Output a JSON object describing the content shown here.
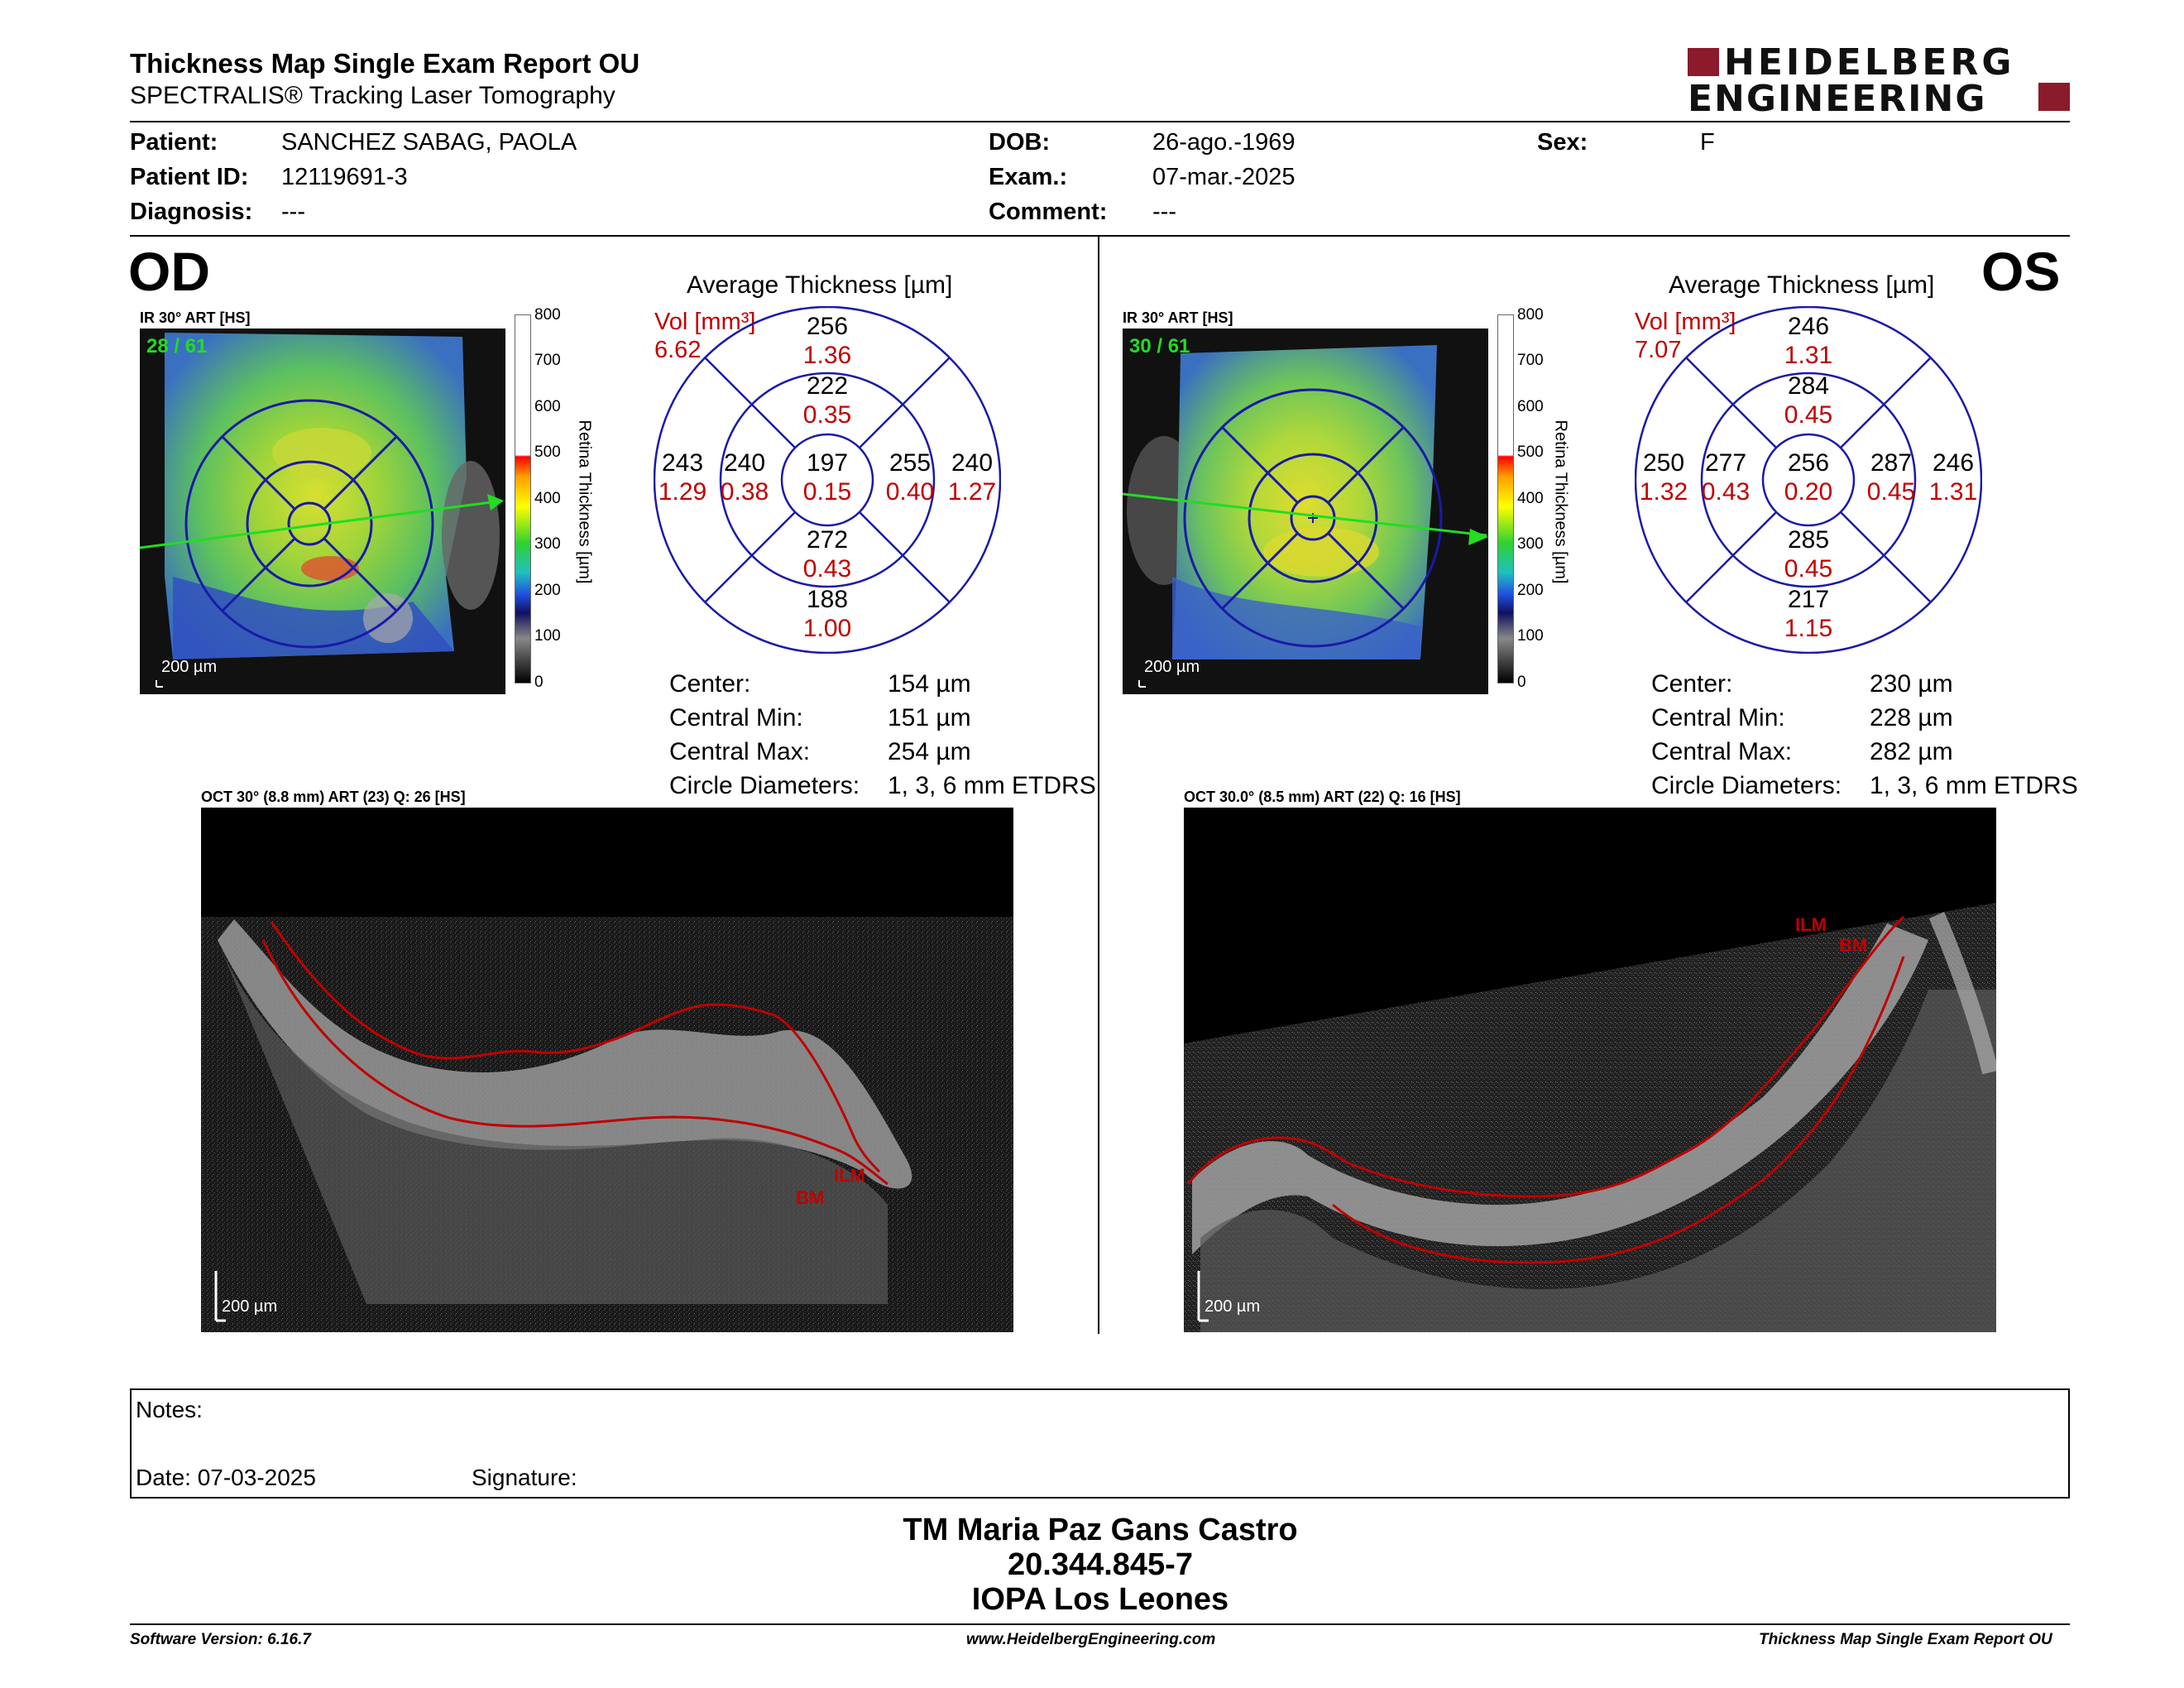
{
  "header": {
    "title": "Thickness Map Single Exam Report OU",
    "subtitle": "SPECTRALIS® Tracking Laser Tomography",
    "logo_line1": "HEIDELBERG",
    "logo_line2": "ENGINEERING"
  },
  "patient": {
    "patient_label": "Patient:",
    "patient_value": "SANCHEZ SABAG, PAOLA",
    "id_label": "Patient ID:",
    "id_value": "12119691-3",
    "diagnosis_label": "Diagnosis:",
    "diagnosis_value": "---",
    "dob_label": "DOB:",
    "dob_value": "26-ago.-1969",
    "exam_label": "Exam.:",
    "exam_value": "07-mar.-2025",
    "comment_label": "Comment:",
    "comment_value": "---",
    "sex_label": "Sex:",
    "sex_value": "F"
  },
  "colorbar": {
    "ticks": [
      "800",
      "700",
      "600",
      "500",
      "400",
      "300",
      "200",
      "100",
      "0"
    ],
    "label": "Retina Thickness [µm]"
  },
  "od": {
    "eye": "OD",
    "ir_caption": "IR 30° ART [HS]",
    "frame": "28 / 61",
    "scale": "200 µm",
    "avg_title": "Average Thickness [µm]",
    "vol_label": "Vol [mm³]",
    "vol_total": "6.62",
    "sectors": {
      "outer_top": {
        "t": "256",
        "v": "1.36"
      },
      "inner_top": {
        "t": "222",
        "v": "0.35"
      },
      "outer_left": {
        "t": "243",
        "v": "1.29"
      },
      "inner_left": {
        "t": "240",
        "v": "0.38"
      },
      "center": {
        "t": "197",
        "v": "0.15"
      },
      "inner_right": {
        "t": "255",
        "v": "0.40"
      },
      "outer_right": {
        "t": "240",
        "v": "1.27"
      },
      "inner_bottom": {
        "t": "272",
        "v": "0.43"
      },
      "outer_bottom": {
        "t": "188",
        "v": "1.00"
      }
    },
    "stats": {
      "center_label": "Center:",
      "center_value": "154 µm",
      "min_label": "Central Min:",
      "min_value": "151 µm",
      "max_label": "Central Max:",
      "max_value": "254 µm",
      "diam_label": "Circle Diameters:",
      "diam_value": "1, 3, 6 mm ETDRS"
    },
    "oct_caption": "OCT 30° (8.8 mm) ART (23) Q: 26 [HS]",
    "oct_scale": "200 µm",
    "ilm_label": "ILM",
    "bm_label": "BM"
  },
  "os": {
    "eye": "OS",
    "ir_caption": "IR 30° ART [HS]",
    "frame": "30 / 61",
    "scale": "200 µm",
    "avg_title": "Average Thickness [µm]",
    "vol_label": "Vol [mm³]",
    "vol_total": "7.07",
    "sectors": {
      "outer_top": {
        "t": "246",
        "v": "1.31"
      },
      "inner_top": {
        "t": "284",
        "v": "0.45"
      },
      "outer_left": {
        "t": "250",
        "v": "1.32"
      },
      "inner_left": {
        "t": "277",
        "v": "0.43"
      },
      "center": {
        "t": "256",
        "v": "0.20"
      },
      "inner_right": {
        "t": "287",
        "v": "0.45"
      },
      "outer_right": {
        "t": "246",
        "v": "1.31"
      },
      "inner_bottom": {
        "t": "285",
        "v": "0.45"
      },
      "outer_bottom": {
        "t": "217",
        "v": "1.15"
      }
    },
    "stats": {
      "center_label": "Center:",
      "center_value": "230 µm",
      "min_label": "Central Min:",
      "min_value": "228 µm",
      "max_label": "Central Max:",
      "max_value": "282 µm",
      "diam_label": "Circle Diameters:",
      "diam_value": "1, 3, 6 mm ETDRS"
    },
    "oct_caption": "OCT 30.0° (8.5 mm) ART (22) Q: 16 [HS]",
    "oct_scale": "200 µm",
    "ilm_label": "ILM",
    "bm_label": "BM"
  },
  "notes": {
    "notes_label": "Notes:",
    "date_label": "Date: 07-03-2025",
    "signature_label": "Signature:"
  },
  "signature_block": {
    "line1": "TM Maria Paz Gans Castro",
    "line2": "20.344.845-7",
    "line3": "IOPA Los Leones"
  },
  "footer": {
    "software": "Software Version: 6.16.7",
    "website": "www.HeidelbergEngineering.com",
    "report": "Thickness Map Single Exam Report OU"
  },
  "colors": {
    "accent_red": "#c00000",
    "logo_red": "#8b1a2b",
    "etdrs_blue": "#1a1aa8",
    "scan_green": "#22dd22"
  }
}
